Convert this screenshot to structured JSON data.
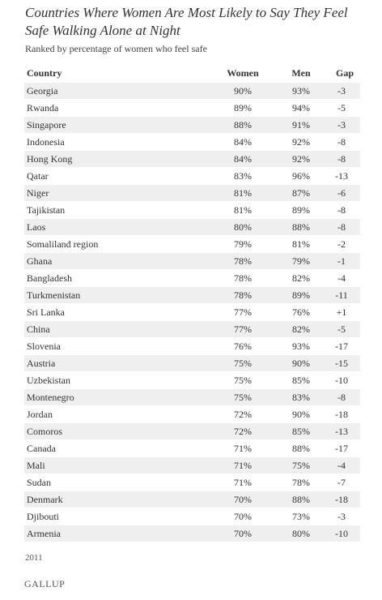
{
  "title": "Countries Where Women Are Most Likely to Say They Feel Safe Walking Alone at Night",
  "subtitle": "Ranked by percentage of women who feel safe",
  "headers": {
    "country": "Country",
    "women": "Women",
    "men": "Men",
    "gap": "Gap"
  },
  "rows": [
    {
      "country": "Georgia",
      "women": "90%",
      "men": "93%",
      "gap": "-3"
    },
    {
      "country": "Rwanda",
      "women": "89%",
      "men": "94%",
      "gap": "-5"
    },
    {
      "country": "Singapore",
      "women": "88%",
      "men": "91%",
      "gap": "-3"
    },
    {
      "country": "Indonesia",
      "women": "84%",
      "men": "92%",
      "gap": "-8"
    },
    {
      "country": "Hong Kong",
      "women": "84%",
      "men": "92%",
      "gap": "-8"
    },
    {
      "country": "Qatar",
      "women": "83%",
      "men": "96%",
      "gap": "-13"
    },
    {
      "country": "Niger",
      "women": "81%",
      "men": "87%",
      "gap": "-6"
    },
    {
      "country": "Tajikistan",
      "women": "81%",
      "men": "89%",
      "gap": "-8"
    },
    {
      "country": "Laos",
      "women": "80%",
      "men": "88%",
      "gap": "-8"
    },
    {
      "country": "Somaliland region",
      "women": "79%",
      "men": "81%",
      "gap": "-2"
    },
    {
      "country": "Ghana",
      "women": "78%",
      "men": "79%",
      "gap": "-1"
    },
    {
      "country": "Bangladesh",
      "women": "78%",
      "men": "82%",
      "gap": "-4"
    },
    {
      "country": "Turkmenistan",
      "women": "78%",
      "men": "89%",
      "gap": "-11"
    },
    {
      "country": "Sri Lanka",
      "women": "77%",
      "men": "76%",
      "gap": "+1"
    },
    {
      "country": "China",
      "women": "77%",
      "men": "82%",
      "gap": "-5"
    },
    {
      "country": "Slovenia",
      "women": "76%",
      "men": "93%",
      "gap": "-17"
    },
    {
      "country": "Austria",
      "women": "75%",
      "men": "90%",
      "gap": "-15"
    },
    {
      "country": "Uzbekistan",
      "women": "75%",
      "men": "85%",
      "gap": "-10"
    },
    {
      "country": "Montenegro",
      "women": "75%",
      "men": "83%",
      "gap": "-8"
    },
    {
      "country": "Jordan",
      "women": "72%",
      "men": "90%",
      "gap": "-18"
    },
    {
      "country": "Comoros",
      "women": "72%",
      "men": "85%",
      "gap": "-13"
    },
    {
      "country": "Canada",
      "women": "71%",
      "men": "88%",
      "gap": "-17"
    },
    {
      "country": "Mali",
      "women": "71%",
      "men": "75%",
      "gap": "-4"
    },
    {
      "country": "Sudan",
      "women": "71%",
      "men": "78%",
      "gap": "-7"
    },
    {
      "country": "Denmark",
      "women": "70%",
      "men": "88%",
      "gap": "-18"
    },
    {
      "country": "Djibouti",
      "women": "70%",
      "men": "73%",
      "gap": "-3"
    },
    {
      "country": "Armenia",
      "women": "70%",
      "men": "80%",
      "gap": "-10"
    }
  ],
  "footnote": "2011",
  "logo": "GALLUP"
}
